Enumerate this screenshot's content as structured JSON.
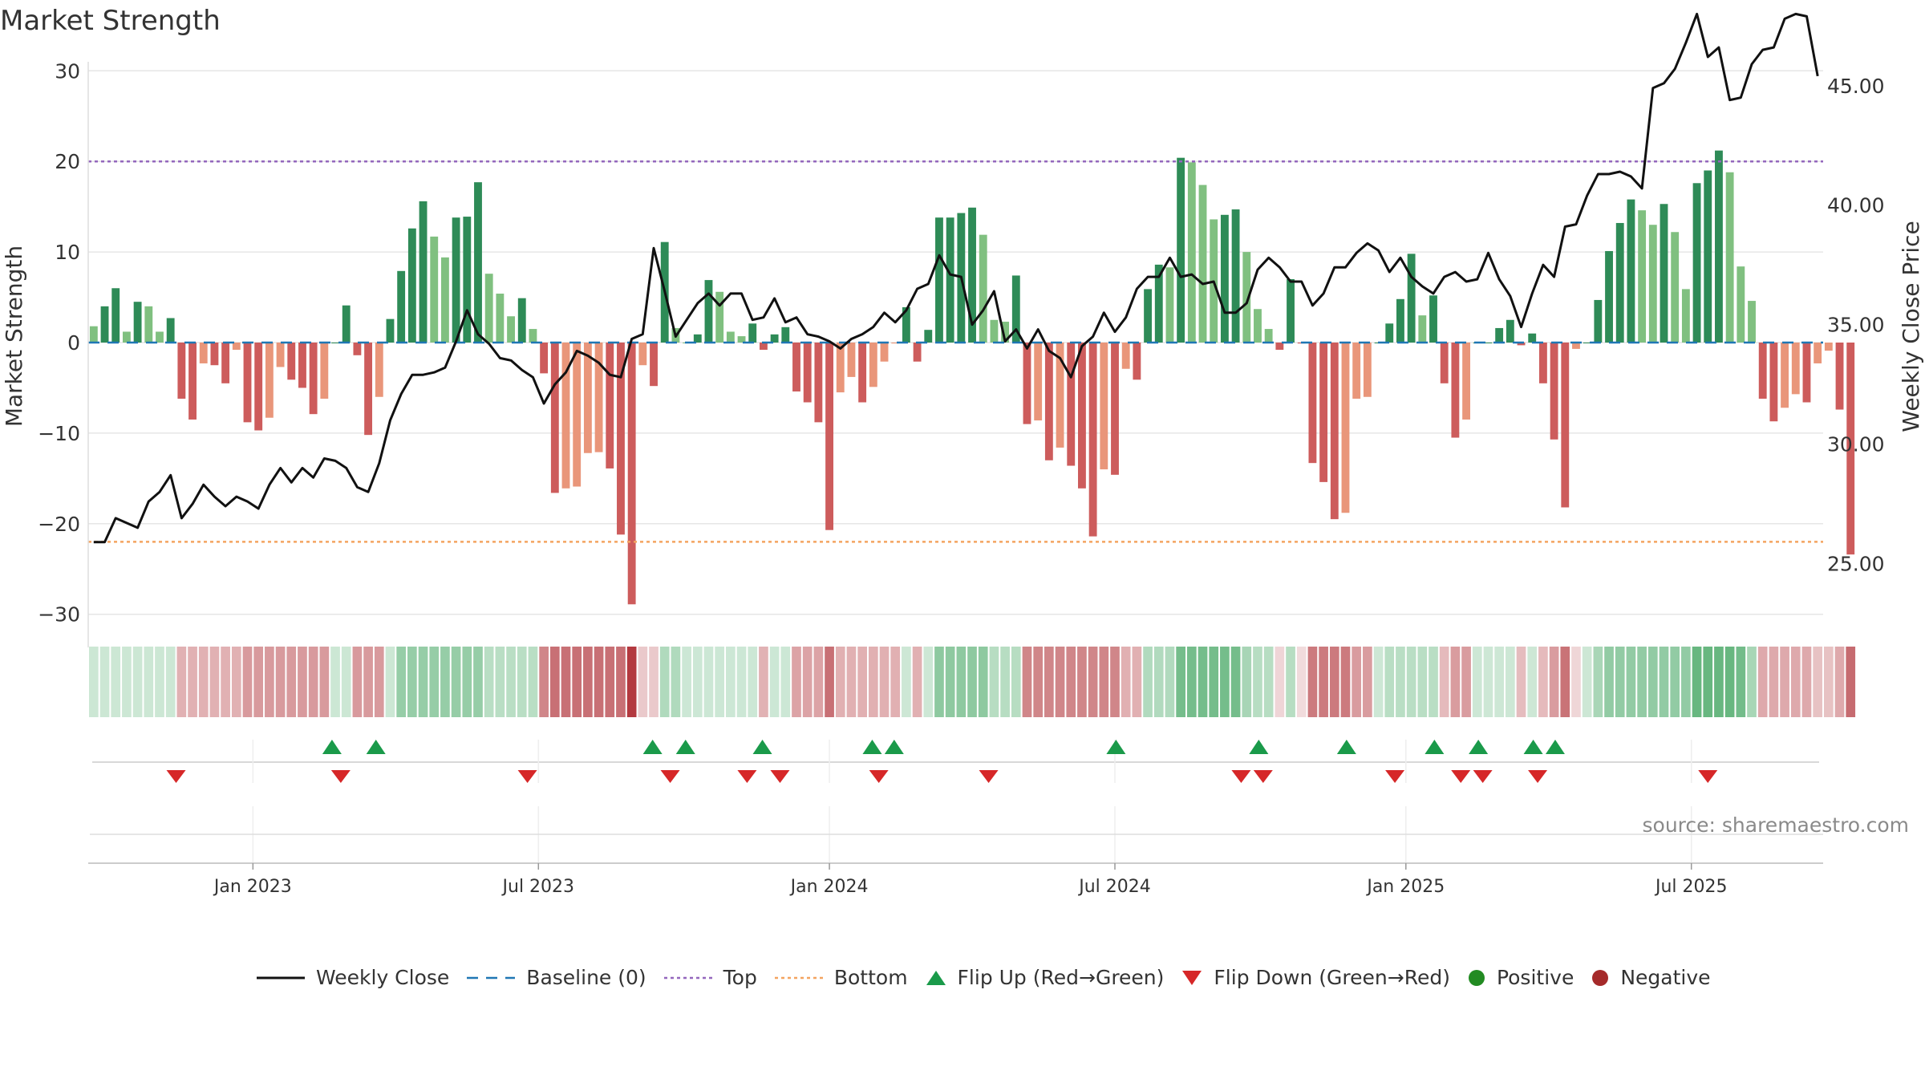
{
  "title": "Market Strength",
  "source": "source: sharemaestro.com",
  "legend": {
    "weekly_close": "Weekly Close",
    "baseline": "Baseline (0)",
    "top": "Top",
    "bottom": "Bottom",
    "flip_up": "Flip Up (Red→Green)",
    "flip_down": "Flip Down (Green→Red)",
    "positive": "Positive",
    "negative": "Negative"
  },
  "colors": {
    "pos_strong": "#2e8b57",
    "pos_light": "#80c080",
    "neg_strong": "#cd5c5c",
    "neg_light": "#e9967a",
    "line": "#111111",
    "baseline": "#1f77b4",
    "top": "#9467bd",
    "bottom": "#f4a460",
    "flip_up": "#1a9a4a",
    "flip_down": "#d62728",
    "positive_dot": "#228b22",
    "negative_dot": "#a52a2a"
  },
  "chart_data": {
    "type": "bar",
    "title": "Market Strength",
    "ylabel": "Market Strength",
    "y2label": "Weekly Close Price",
    "ylim": [
      -31,
      31
    ],
    "y2lim": [
      22.5,
      46
    ],
    "yticks": [
      30,
      20,
      10,
      0,
      -10,
      -20,
      -30
    ],
    "ytick_labels": [
      "30",
      "20",
      "10",
      "0",
      "−10",
      "−20",
      "−30"
    ],
    "y2ticks": [
      45,
      40,
      35,
      30,
      25
    ],
    "y2tick_labels": [
      "45.00",
      "40.00",
      "35.00",
      "30.00",
      "25.00"
    ],
    "x_range": [
      0,
      158
    ],
    "xticks": [
      15,
      41,
      67.5,
      93.5,
      120,
      146
    ],
    "xtick_labels": [
      "Jan 2023",
      "Jul 2023",
      "Jan 2024",
      "Jul 2024",
      "Jan 2025",
      "Jul 2025"
    ],
    "top_threshold": 20,
    "bottom_threshold": -22,
    "baseline": 0,
    "strength": [
      1.8,
      4,
      6,
      1.2,
      4.5,
      4,
      1.2,
      2.7,
      -6.2,
      -8.5,
      -2.3,
      -2.5,
      -4.5,
      -0.8,
      -8.8,
      -9.7,
      -8.3,
      -2.7,
      -4.1,
      -5,
      -7.9,
      -6.2,
      0,
      4.1,
      -1.4,
      -10.2,
      -6,
      2.6,
      7.9,
      12.6,
      15.6,
      11.7,
      9.4,
      13.8,
      13.9,
      17.7,
      7.6,
      5.4,
      2.9,
      4.9,
      1.5,
      -3.4,
      -16.6,
      -16.1,
      -15.9,
      -12.2,
      -12.1,
      -13.9,
      -21.2,
      -28.9,
      -2.5,
      -4.8,
      11.1,
      1.6,
      0,
      0.9,
      6.9,
      5.6,
      1.2,
      0.7,
      2.1,
      -0.8,
      0.9,
      1.7,
      -5.4,
      -6.6,
      -8.8,
      -20.7,
      -5.5,
      -3.8,
      -6.6,
      -4.9,
      -2.1,
      -0.1,
      3.9,
      -2.1,
      1.4,
      13.8,
      13.8,
      14.3,
      14.9,
      11.9,
      2.5,
      2.3,
      7.4,
      -9,
      -8.6,
      -13,
      -11.6,
      -13.6,
      -16.1,
      -21.4,
      -14,
      -14.6,
      -2.9,
      -4.1,
      5.9,
      8.6,
      8.3,
      20.4,
      19.9,
      17.4,
      13.6,
      14.1,
      14.7,
      10,
      3.7,
      1.5,
      -0.8,
      7,
      -0.1,
      -13.3,
      -15.4,
      -19.5,
      -18.8,
      -6.2,
      -6,
      0,
      2.1,
      4.8,
      9.8,
      3,
      5.2,
      -4.5,
      -10.5,
      -8.5,
      0,
      0,
      1.6,
      2.5,
      -0.3,
      1,
      -4.5,
      -10.7,
      -18.2,
      -0.7,
      0,
      4.7,
      10.1,
      13.2,
      15.8,
      14.6,
      13,
      15.3,
      12.2,
      5.9,
      17.6,
      19,
      21.2,
      18.8,
      8.4,
      4.6,
      -6.2,
      -8.7,
      -7.2,
      -5.7,
      -6.6,
      -2.3,
      -0.9,
      -7.4,
      -23.4
    ],
    "weekly_close": [
      25.9,
      25.9,
      26.9,
      26.7,
      26.5,
      27.6,
      28.0,
      28.7,
      26.9,
      27.5,
      28.3,
      27.8,
      27.4,
      27.8,
      27.6,
      27.3,
      28.3,
      29.0,
      28.4,
      29.0,
      28.6,
      29.4,
      29.3,
      29.0,
      28.2,
      28.0,
      29.2,
      31.0,
      32.1,
      32.9,
      32.9,
      33.0,
      33.2,
      34.3,
      35.6,
      34.6,
      34.2,
      33.6,
      33.5,
      33.1,
      32.8,
      31.7,
      32.5,
      33.0,
      33.9,
      33.7,
      33.4,
      32.9,
      32.8,
      34.4,
      34.6,
      38.2,
      36.4,
      34.5,
      35.2,
      35.9,
      36.3,
      35.8,
      36.3,
      36.3,
      35.2,
      35.3,
      36.1,
      35.1,
      35.3,
      34.6,
      34.5,
      34.3,
      34.0,
      34.4,
      34.6,
      34.9,
      35.5,
      35.1,
      35.6,
      36.5,
      36.7,
      37.9,
      37.1,
      37.0,
      35.0,
      35.6,
      36.4,
      34.3,
      34.8,
      34.0,
      34.8,
      33.9,
      33.6,
      32.8,
      34.1,
      34.5,
      35.5,
      34.7,
      35.3,
      36.5,
      37.0,
      37.0,
      37.8,
      37.0,
      37.1,
      36.7,
      36.8,
      35.5,
      35.5,
      35.9,
      37.3,
      37.8,
      37.4,
      36.8,
      36.8,
      35.8,
      36.3,
      37.4,
      37.4,
      38.0,
      38.4,
      38.1,
      37.2,
      37.8,
      37.0,
      36.6,
      36.3,
      37.0,
      37.2,
      36.8,
      36.9,
      38.0,
      36.9,
      36.2,
      34.9,
      36.3,
      37.5,
      37.0,
      39.1,
      39.2,
      40.4,
      41.3,
      41.3,
      41.4,
      41.2,
      40.7,
      44.9,
      45.1,
      45.7,
      46.8,
      48.0,
      46.2,
      46.6,
      44.4,
      44.5,
      45.9,
      46.5,
      46.6,
      47.8,
      48.0,
      47.9,
      45.4
    ],
    "band_values": [
      2.3,
      2.3,
      2.3,
      2.3,
      2.3,
      2.3,
      2.3,
      2.3,
      -5.8,
      -5.8,
      -5.8,
      -5.8,
      -5.8,
      -5.8,
      -8.9,
      -8.9,
      -8.9,
      -8.9,
      -8.9,
      -8.9,
      -8.9,
      -8.9,
      2.3,
      2.3,
      -8.9,
      -8.9,
      -8.9,
      2.3,
      9.7,
      9.7,
      9.7,
      9.7,
      9.7,
      9.7,
      9.7,
      9.7,
      4.9,
      4.9,
      4.9,
      4.9,
      4.9,
      -11.6,
      -14.5,
      -14.5,
      -14.5,
      -14.5,
      -14.5,
      -14.5,
      -14.5,
      -22.5,
      -2.5,
      -2.5,
      6.1,
      6.1,
      2.2,
      2.2,
      2.2,
      2.2,
      2.2,
      2.2,
      2.2,
      -5.6,
      2.2,
      2.2,
      -7.6,
      -7.6,
      -7.6,
      -14.5,
      -5.9,
      -5.9,
      -5.9,
      -5.9,
      -5.9,
      -5.9,
      2.1,
      -5.9,
      2.1,
      10.9,
      10.9,
      10.9,
      10.9,
      10.9,
      5.2,
      5.2,
      5.2,
      -11.6,
      -11.6,
      -11.6,
      -11.6,
      -11.6,
      -11.6,
      -11.6,
      -11.6,
      -11.6,
      -5.9,
      -5.9,
      6.0,
      6.0,
      6.0,
      14.4,
      14.4,
      14.4,
      14.4,
      14.4,
      14.4,
      7.3,
      5.2,
      5.2,
      -0.8,
      5.2,
      -0.1,
      -13.2,
      -13.2,
      -13.2,
      -13.2,
      -8.6,
      -8.6,
      2.1,
      4.9,
      4.9,
      4.9,
      4.9,
      4.9,
      -4.5,
      -8.6,
      -8.6,
      2.1,
      2.1,
      2.1,
      2.1,
      -4.2,
      2.1,
      -4.5,
      -8.6,
      -14.2,
      -0.7,
      2.1,
      7.1,
      10.3,
      10.3,
      10.3,
      10.3,
      10.3,
      10.3,
      10.3,
      10.3,
      16.2,
      16.2,
      16.2,
      16.2,
      14.6,
      7.2,
      -6.8,
      -6.8,
      -6.8,
      -6.8,
      -6.8,
      -3.5,
      -3.5,
      -6.8,
      -15.2
    ],
    "flip_up_positions": [
      22.2,
      26.2,
      51.4,
      54.4,
      61.4,
      71.4,
      73.4,
      93.6,
      106.6,
      114.6,
      122.6,
      126.6,
      131.6,
      133.6
    ],
    "flip_down_positions": [
      8,
      23,
      40,
      53,
      60,
      63,
      72,
      82,
      105,
      107,
      119,
      125,
      127,
      132,
      147.5
    ]
  }
}
